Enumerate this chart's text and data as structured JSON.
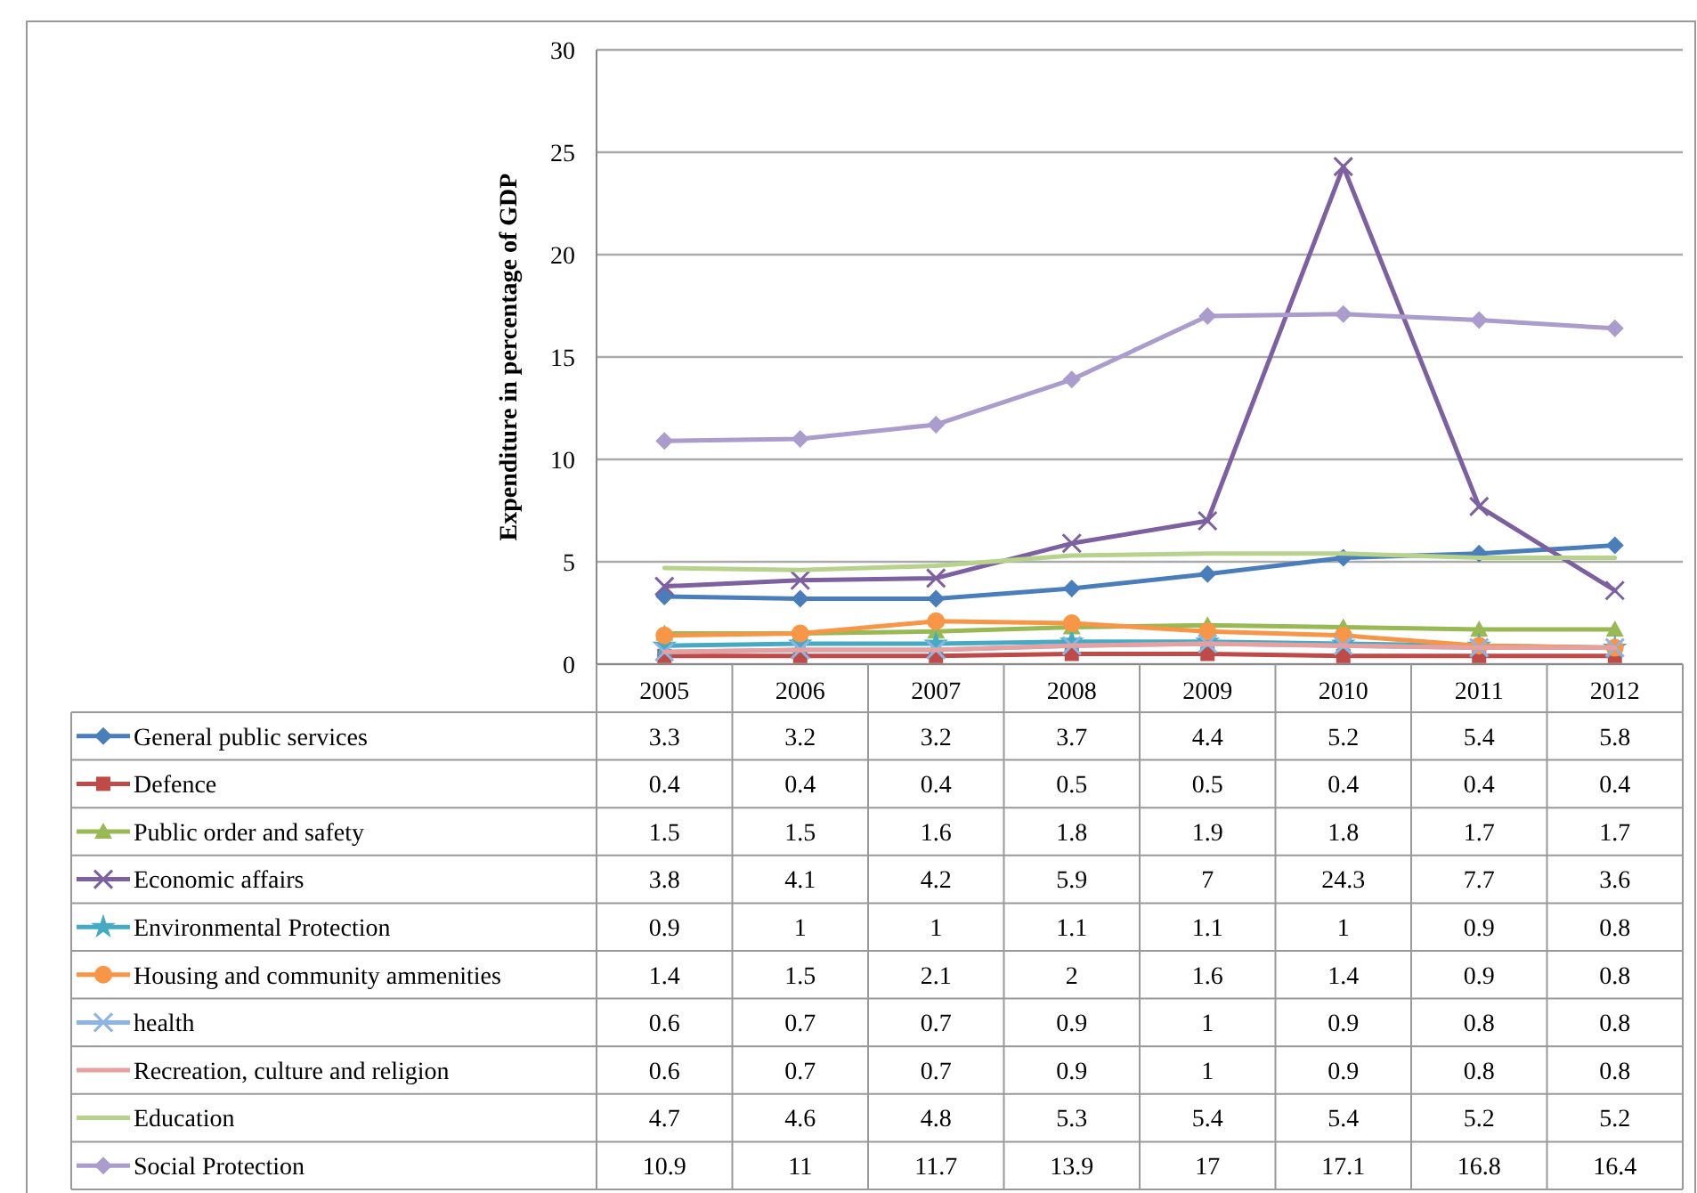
{
  "chart_data": {
    "type": "line",
    "ylabel": "Expenditure in percentage of GDP",
    "categories": [
      "2005",
      "2006",
      "2007",
      "2008",
      "2009",
      "2010",
      "2011",
      "2012"
    ],
    "ylim": [
      0,
      30
    ],
    "yticks": [
      0,
      5,
      10,
      15,
      20,
      25,
      30
    ],
    "grid": "y",
    "legend": "bottom",
    "data_labels": true,
    "series": [
      {
        "name": "General public services",
        "color": "#4a7ebb",
        "marker": "diamond",
        "values": [
          3.3,
          3.2,
          3.2,
          3.7,
          4.4,
          5.2,
          5.4,
          5.8
        ]
      },
      {
        "name": "Defence",
        "color": "#be4b48",
        "marker": "square",
        "values": [
          0.4,
          0.4,
          0.4,
          0.5,
          0.5,
          0.4,
          0.4,
          0.4
        ]
      },
      {
        "name": "Public order and safety",
        "color": "#98b954",
        "marker": "triangle",
        "values": [
          1.5,
          1.5,
          1.6,
          1.8,
          1.9,
          1.8,
          1.7,
          1.7
        ]
      },
      {
        "name": "Economic affairs",
        "color": "#7d60a0",
        "marker": "cross",
        "values": [
          3.8,
          4.1,
          4.2,
          5.9,
          7,
          24.3,
          7.7,
          3.6
        ]
      },
      {
        "name": "Environmental Protection",
        "color": "#46aac5",
        "marker": "star",
        "values": [
          0.9,
          1,
          1,
          1.1,
          1.1,
          1,
          0.9,
          0.8
        ]
      },
      {
        "name": "Housing and community ammenities",
        "color": "#f79646",
        "marker": "circle",
        "values": [
          1.4,
          1.5,
          2.1,
          2,
          1.6,
          1.4,
          0.9,
          0.8
        ]
      },
      {
        "name": "health",
        "color": "#8eb4e3",
        "marker": "cross",
        "values": [
          0.6,
          0.7,
          0.7,
          0.9,
          1,
          0.9,
          0.8,
          0.8
        ]
      },
      {
        "name": "Recreation, culture and religion",
        "color": "#e6a0a0",
        "marker": "none",
        "values": [
          0.6,
          0.7,
          0.7,
          0.9,
          1,
          0.9,
          0.8,
          0.8
        ]
      },
      {
        "name": "Education",
        "color": "#b7d28c",
        "marker": "none",
        "values": [
          4.7,
          4.6,
          4.8,
          5.3,
          5.4,
          5.4,
          5.2,
          5.2
        ]
      },
      {
        "name": "Social Protection",
        "color": "#aa9ccc",
        "marker": "diamond",
        "values": [
          10.9,
          11,
          11.7,
          13.9,
          17,
          17.1,
          16.8,
          16.4
        ]
      }
    ]
  }
}
